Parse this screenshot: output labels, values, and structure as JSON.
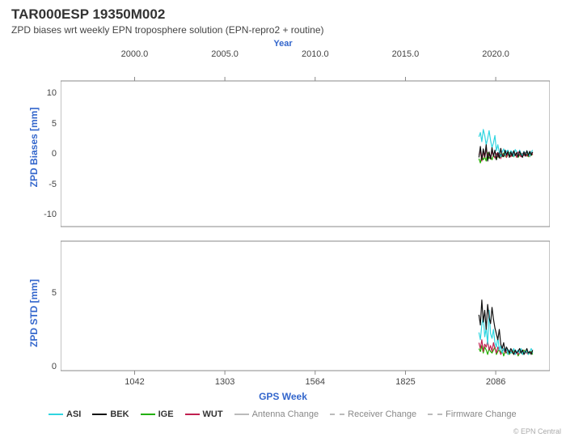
{
  "title": "TAR000ESP 19350M002",
  "subtitle": "ZPD biases wrt weekly EPN troposphere solution (EPN-repro2 + routine)",
  "top_axis": {
    "label": "Year",
    "ticks": [
      "2000.0",
      "2005.0",
      "2010.0",
      "2015.0",
      "2020.0"
    ],
    "positions": [
      0.1512,
      0.3357,
      0.5203,
      0.7049,
      0.8894
    ]
  },
  "bottom_axis": {
    "label": "GPS Week",
    "ticks": [
      "1042",
      "1303",
      "1564",
      "1825",
      "2086"
    ],
    "positions": [
      0.1512,
      0.3357,
      0.5203,
      0.7049,
      0.8894
    ]
  },
  "panel1": {
    "ylabel": "ZPD Biases [mm]",
    "ticks": [
      -10,
      -5,
      0,
      5,
      10
    ],
    "ylim": [
      -12,
      12
    ]
  },
  "panel2": {
    "ylabel": "ZPD STD [mm]",
    "ticks": [
      0,
      5
    ],
    "ylim": [
      -0.3,
      8.5
    ]
  },
  "colors": {
    "ASI": "#30d5e0",
    "BEK": "#111111",
    "IGE": "#22b000",
    "WUT": "#c02050",
    "gray": "#bbbbbb",
    "axis": "#888888",
    "grid": "#e8e8e8"
  },
  "legend": {
    "series": [
      {
        "name": "ASI",
        "color": "#30d5e0",
        "bold": true
      },
      {
        "name": "BEK",
        "color": "#111111",
        "bold": true
      },
      {
        "name": "IGE",
        "color": "#22b000",
        "bold": true
      },
      {
        "name": "WUT",
        "color": "#c02050",
        "bold": true
      },
      {
        "name": "Antenna Change",
        "color": "#bbbbbb",
        "bold": false
      },
      {
        "name": "Receiver Change",
        "color": "#bbbbbb",
        "bold": false,
        "dash": true
      },
      {
        "name": "Firmware Change",
        "color": "#bbbbbb",
        "bold": false,
        "dash": true
      }
    ]
  },
  "credit": "© EPN Central",
  "data_xrange": [
    0.855,
    0.965
  ],
  "series_panel1": {
    "ASI": [
      2.8,
      3.5,
      2.0,
      4.0,
      3.0,
      1.5,
      2.5,
      3.8,
      2.2,
      1.0,
      1.8,
      3.0,
      0.5,
      1.5,
      0.2,
      -0.5,
      0.3,
      0.8,
      -0.2,
      0.4,
      0.6,
      -0.3,
      0.5,
      0.2,
      -0.4,
      0.7,
      0.3,
      -0.5,
      0.6,
      0,
      -0.3,
      0.4,
      -0.2,
      0.5,
      0.1,
      -0.4,
      0.3,
      0.6
    ],
    "BEK": [
      -0.6,
      1.2,
      -1.0,
      0.8,
      -0.5,
      1.5,
      -1.2,
      0.3,
      -0.8,
      1.0,
      -0.4,
      0.6,
      -1.0,
      0.2,
      -0.7,
      0.9,
      -0.3,
      -0.5,
      0.6,
      -0.2,
      0.4,
      -0.6,
      0.3,
      -0.4,
      0.5,
      -0.3,
      0.2,
      -0.5,
      0.4,
      -0.2,
      -0.6,
      0.3,
      -0.4,
      0.5,
      -0.3,
      0.4,
      -0.2,
      0.3
    ],
    "IGE": [
      -0.8,
      -1.5,
      -0.3,
      -1.0,
      -0.5,
      -1.2,
      0.2,
      -0.8,
      -0.4,
      -1.0,
      -0.2,
      -0.6,
      -0.9,
      -0.3,
      -0.7,
      -0.1,
      -0.5,
      0.1,
      -0.3,
      -0.6,
      -0.2,
      0.2,
      -0.4,
      -0.1,
      -0.5,
      0,
      -0.3,
      -0.6,
      -0.2,
      0.1,
      -0.4,
      0,
      -0.3,
      -0.1,
      -0.5,
      0.2,
      -0.3,
      0
    ],
    "WUT": [
      -0.2,
      0.5,
      -1.2,
      0.3,
      -0.6,
      0.8,
      -0.4,
      0.2,
      -0.9,
      0.4,
      -0.3,
      -0.7,
      0.1,
      -0.5,
      0.3,
      -0.8,
      0,
      -0.4,
      0.2,
      -0.6,
      0.1,
      -0.3,
      -0.5,
      0.2,
      -0.4,
      0,
      -0.6,
      0.3,
      -0.2,
      -0.5,
      0.1,
      -0.3,
      0.2,
      -0.4,
      0,
      -0.5,
      0.3,
      -0.2
    ]
  },
  "series_panel2": {
    "ASI": [
      2.3,
      1.8,
      2.8,
      3.4,
      2.0,
      2.6,
      1.5,
      3.8,
      2.2,
      1.9,
      2.5,
      1.6,
      1.3,
      2.0,
      1.1,
      1.4,
      0.9,
      1.2,
      1.0,
      1.3,
      0.8,
      1.1,
      0.9,
      1.0,
      1.2,
      0.8,
      1.0,
      1.1,
      0.9,
      1.2,
      0.8,
      1.0,
      0.9,
      1.1,
      0.8,
      1.0,
      1.2,
      0.9
    ],
    "BEK": [
      3.5,
      2.8,
      4.5,
      3.0,
      3.8,
      2.5,
      4.2,
      3.3,
      2.9,
      4.0,
      3.2,
      2.6,
      2.2,
      1.8,
      2.5,
      1.5,
      1.2,
      1.6,
      1.0,
      1.3,
      1.1,
      0.9,
      1.2,
      1.0,
      0.8,
      1.1,
      0.9,
      1.0,
      1.2,
      0.9,
      1.1,
      0.8,
      1.0,
      1.2,
      0.9,
      1.0,
      0.8,
      1.1
    ],
    "IGE": [
      1.2,
      1.0,
      1.4,
      0.9,
      1.3,
      1.1,
      0.8,
      1.2,
      1.0,
      0.9,
      1.1,
      1.3,
      0.8,
      1.0,
      1.2,
      0.9,
      1.1,
      0.7,
      1.0,
      0.9,
      1.1,
      0.8,
      1.0,
      0.9,
      1.1,
      0.8,
      1.0,
      0.7,
      0.9,
      1.0,
      0.8,
      1.1,
      0.9,
      1.0,
      0.8,
      0.9,
      1.0,
      0.8
    ],
    "WUT": [
      1.6,
      1.2,
      1.8,
      1.0,
      1.5,
      1.3,
      1.7,
      1.1,
      1.4,
      1.0,
      1.6,
      1.2,
      0.9,
      1.3,
      1.1,
      0.8,
      1.0,
      1.2,
      0.9,
      1.1,
      0.8,
      1.0,
      0.9,
      1.1,
      0.8,
      1.0,
      0.9,
      0.8,
      1.0,
      0.9,
      1.1,
      0.8,
      1.0,
      0.9,
      0.8,
      1.0,
      0.9,
      1.0
    ]
  }
}
